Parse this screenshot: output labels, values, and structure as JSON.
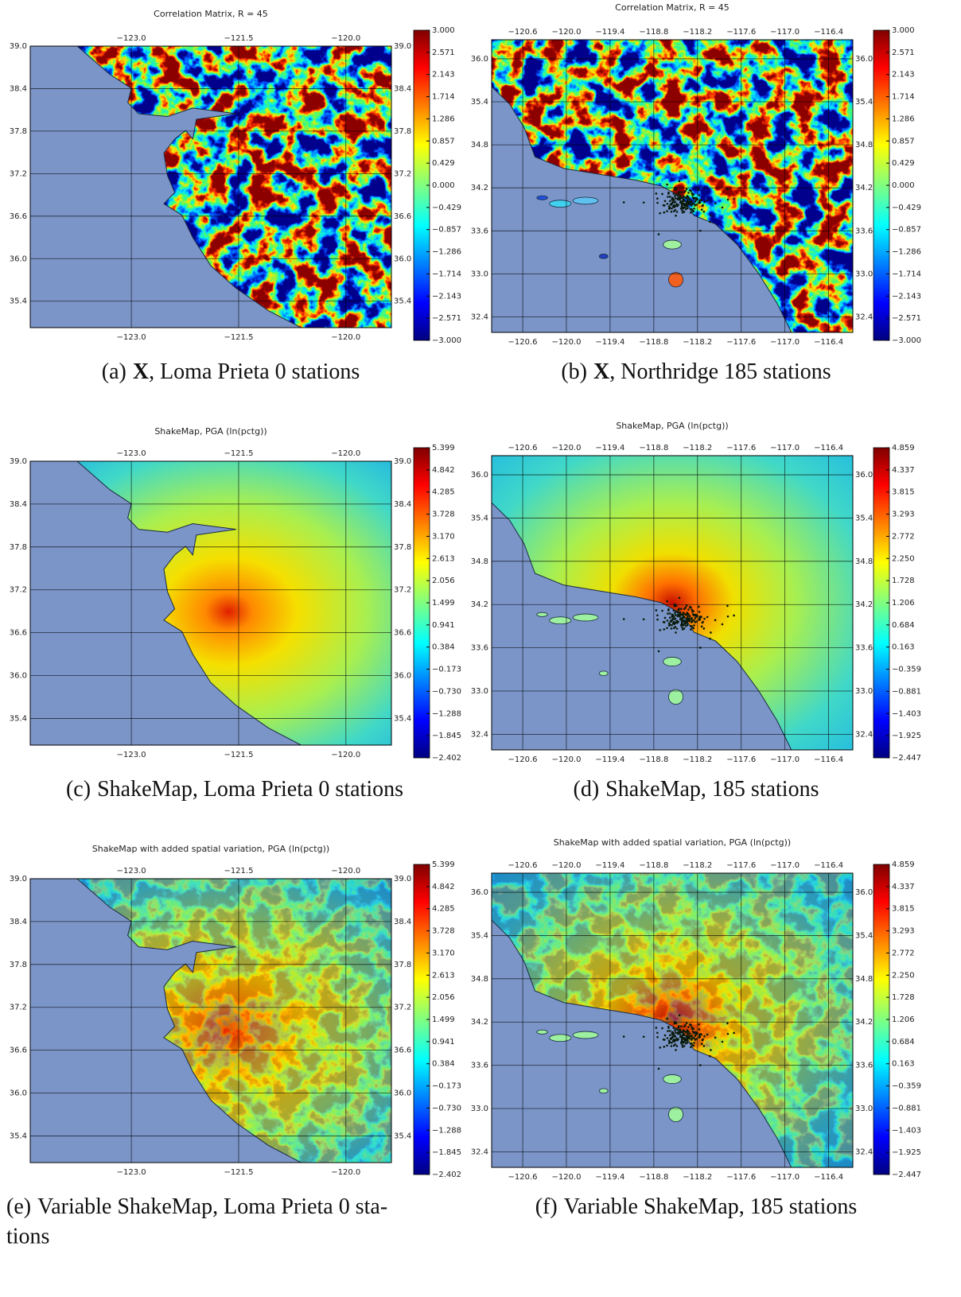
{
  "panels": [
    {
      "title": "Correlation Matrix, R = 45",
      "xticks": [
        "−123.0",
        "−121.5",
        "−120.0"
      ],
      "yticks": [
        "39.0",
        "38.4",
        "37.8",
        "37.2",
        "36.6",
        "36.0",
        "35.4"
      ],
      "colorbar": [
        "3.000",
        "2.571",
        "2.143",
        "1.714",
        "1.286",
        "0.857",
        "0.429",
        "0.000",
        "−0.429",
        "−0.857",
        "−1.286",
        "−1.714",
        "−2.143",
        "−2.571",
        "−3.000"
      ],
      "caption": {
        "label": "(a)",
        "bold": "X",
        "text": ", Loma Prieta 0 stations"
      }
    },
    {
      "title": "Correlation Matrix, R = 45",
      "xticks": [
        "−120.6",
        "−120.0",
        "−119.4",
        "−118.8",
        "−118.2",
        "−117.6",
        "−117.0",
        "−116.4"
      ],
      "yticks": [
        "36.0",
        "35.4",
        "34.8",
        "34.2",
        "33.6",
        "33.0",
        "32.4"
      ],
      "colorbar": [
        "3.000",
        "2.571",
        "2.143",
        "1.714",
        "1.286",
        "0.857",
        "0.429",
        "0.000",
        "−0.429",
        "−0.857",
        "−1.286",
        "−1.714",
        "−2.143",
        "−2.571",
        "−3.000"
      ],
      "caption": {
        "label": "(b)",
        "bold": "X",
        "text": ", Northridge 185 stations"
      }
    },
    {
      "title": "ShakeMap, PGA (ln(pctg))",
      "xticks": [
        "−123.0",
        "−121.5",
        "−120.0"
      ],
      "yticks": [
        "39.0",
        "38.4",
        "37.8",
        "37.2",
        "36.6",
        "36.0",
        "35.4"
      ],
      "colorbar": [
        "5.399",
        "4.842",
        "4.285",
        "3.728",
        "3.170",
        "2.613",
        "2.056",
        "1.499",
        "0.941",
        "0.384",
        "−0.173",
        "−0.730",
        "−1.288",
        "−1.845",
        "−2.402"
      ],
      "caption": {
        "label": "(c)",
        "text": "ShakeMap, Loma Prieta 0 stations"
      }
    },
    {
      "title": "ShakeMap, PGA (ln(pctg))",
      "xticks": [
        "−120.6",
        "−120.0",
        "−119.4",
        "−118.8",
        "−118.2",
        "−117.6",
        "−117.0",
        "−116.4"
      ],
      "yticks": [
        "36.0",
        "35.4",
        "34.8",
        "34.2",
        "33.6",
        "33.0",
        "32.4"
      ],
      "colorbar": [
        "4.859",
        "4.337",
        "3.815",
        "3.293",
        "2.772",
        "2.250",
        "1.728",
        "1.206",
        "0.684",
        "0.163",
        "−0.359",
        "−0.881",
        "−1.403",
        "−1.925",
        "−2.447"
      ],
      "caption": {
        "label": "(d)",
        "text": "ShakeMap, 185 stations"
      }
    },
    {
      "title": "ShakeMap with added spatial variation, PGA (ln(pctg))",
      "xticks": [
        "−123.0",
        "−121.5",
        "−120.0"
      ],
      "yticks": [
        "39.0",
        "38.4",
        "37.8",
        "37.2",
        "36.6",
        "36.0",
        "35.4"
      ],
      "colorbar": [
        "5.399",
        "4.842",
        "4.285",
        "3.728",
        "3.170",
        "2.613",
        "2.056",
        "1.499",
        "0.941",
        "0.384",
        "−0.173",
        "−0.730",
        "−1.288",
        "−1.845",
        "−2.402"
      ],
      "caption": {
        "label": "(e)",
        "text": "Variable ShakeMap, Loma Prieta 0 sta-",
        "text2": "tions"
      }
    },
    {
      "title": "ShakeMap with added spatial variation, PGA (ln(pctg))",
      "xticks": [
        "−120.6",
        "−120.0",
        "−119.4",
        "−118.8",
        "−118.2",
        "−117.6",
        "−117.0",
        "−116.4"
      ],
      "yticks": [
        "36.0",
        "35.4",
        "34.8",
        "34.2",
        "33.6",
        "33.0",
        "32.4"
      ],
      "colorbar": [
        "4.859",
        "4.337",
        "3.815",
        "3.293",
        "2.772",
        "2.250",
        "1.728",
        "1.206",
        "0.684",
        "0.163",
        "−0.359",
        "−0.881",
        "−1.403",
        "−1.925",
        "−2.447"
      ],
      "caption": {
        "label": "(f)",
        "text": "Variable ShakeMap, 185 stations"
      }
    }
  ]
}
